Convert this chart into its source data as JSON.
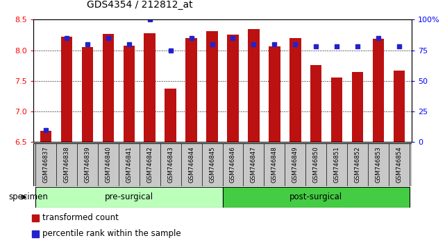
{
  "title": "GDS4354 / 212812_at",
  "samples": [
    "GSM746837",
    "GSM746838",
    "GSM746839",
    "GSM746840",
    "GSM746841",
    "GSM746842",
    "GSM746843",
    "GSM746844",
    "GSM746845",
    "GSM746846",
    "GSM746847",
    "GSM746848",
    "GSM746849",
    "GSM746850",
    "GSM746851",
    "GSM746852",
    "GSM746853",
    "GSM746854"
  ],
  "red_values": [
    6.69,
    8.22,
    8.05,
    8.27,
    8.07,
    8.28,
    7.37,
    8.2,
    8.31,
    8.25,
    8.35,
    8.06,
    8.2,
    7.76,
    7.56,
    7.65,
    8.19,
    7.67
  ],
  "blue_percentiles": [
    10,
    85,
    80,
    85,
    80,
    100,
    75,
    85,
    80,
    85,
    80,
    80,
    80,
    78,
    78,
    78,
    85,
    78
  ],
  "pre_surgical_count": 9,
  "post_surgical_count": 9,
  "ylim_left": [
    6.5,
    8.5
  ],
  "ylim_right": [
    0,
    100
  ],
  "yticks_left": [
    6.5,
    7.0,
    7.5,
    8.0,
    8.5
  ],
  "yticks_right": [
    0,
    25,
    50,
    75,
    100
  ],
  "ytick_labels_right": [
    "0",
    "25",
    "50",
    "75",
    "100%"
  ],
  "bar_color": "#BB1111",
  "dot_color": "#2222CC",
  "pre_surgical_color": "#BBFFBB",
  "post_surgical_color": "#44CC44",
  "xticklabel_bg": "#C8C8C8",
  "specimen_label": "specimen",
  "pre_surgical_label": "pre-surgical",
  "post_surgical_label": "post-surgical",
  "legend_red_label": "transformed count",
  "legend_blue_label": "percentile rank within the sample",
  "bar_width": 0.55,
  "base_value": 6.5
}
